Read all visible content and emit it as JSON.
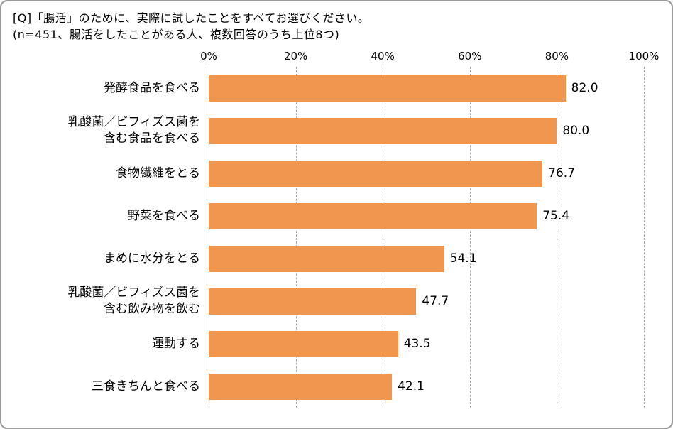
{
  "header": {
    "line1": "[Q]「腸活」のために、実際に試したことをすべてお選びください。",
    "line2": "(n=451、腸活をしたことがある人、複数回答のうち上位8つ)"
  },
  "chart_data": {
    "type": "bar",
    "orientation": "horizontal",
    "title": "",
    "categories": [
      "発酵食品を食べる",
      "乳酸菌／ビフィズス菌を\n含む食品を食べる",
      "食物繊維をとる",
      "野菜を食べる",
      "まめに水分をとる",
      "乳酸菌／ビフィズス菌を\n含む飲み物を飲む",
      "運動する",
      "三食きちんと食べる"
    ],
    "values": [
      82.0,
      80.0,
      76.7,
      75.4,
      54.1,
      47.7,
      43.5,
      42.1
    ],
    "value_labels": [
      "82.0",
      "80.0",
      "76.7",
      "75.4",
      "54.1",
      "47.7",
      "43.5",
      "42.1"
    ],
    "x_ticks": [
      {
        "label": "0%",
        "value": 0
      },
      {
        "label": "20%",
        "value": 20
      },
      {
        "label": "40%",
        "value": 40
      },
      {
        "label": "60%",
        "value": 60
      },
      {
        "label": "80%",
        "value": 80
      },
      {
        "label": "100%",
        "value": 100
      }
    ],
    "xlim": [
      0,
      100
    ],
    "bar_color": "#F0964E",
    "grid": "dashed-vertical",
    "legend": "none"
  }
}
